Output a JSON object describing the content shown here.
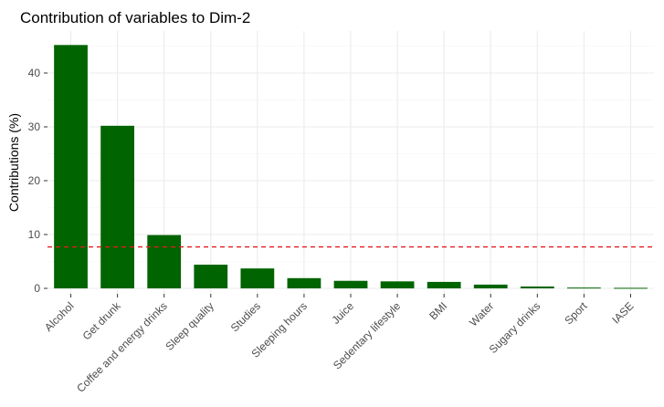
{
  "chart_data": {
    "type": "bar",
    "title": "Contribution of variables to Dim-2",
    "xlabel": "",
    "ylabel": "Contributions (%)",
    "categories": [
      "Alcohol",
      "Get drunk",
      "Coffee and energy drinks",
      "Sleep quality",
      "Studies",
      "Sleeping hours",
      "Juice",
      "Sedentary lifestyle",
      "BMI",
      "Water",
      "Sugary drinks",
      "Sport",
      "IASE"
    ],
    "values": [
      45.2,
      30.2,
      9.9,
      4.4,
      3.7,
      1.9,
      1.4,
      1.3,
      1.2,
      0.7,
      0.35,
      0.15,
      0.1
    ],
    "ylim": [
      0,
      47
    ],
    "yticks": [
      0,
      10,
      20,
      30,
      40
    ],
    "reference_line": 7.7,
    "grid": true,
    "colors": {
      "bar": "#006400",
      "reference_line": "#e41a1c",
      "grid": "#ebebeb"
    }
  }
}
